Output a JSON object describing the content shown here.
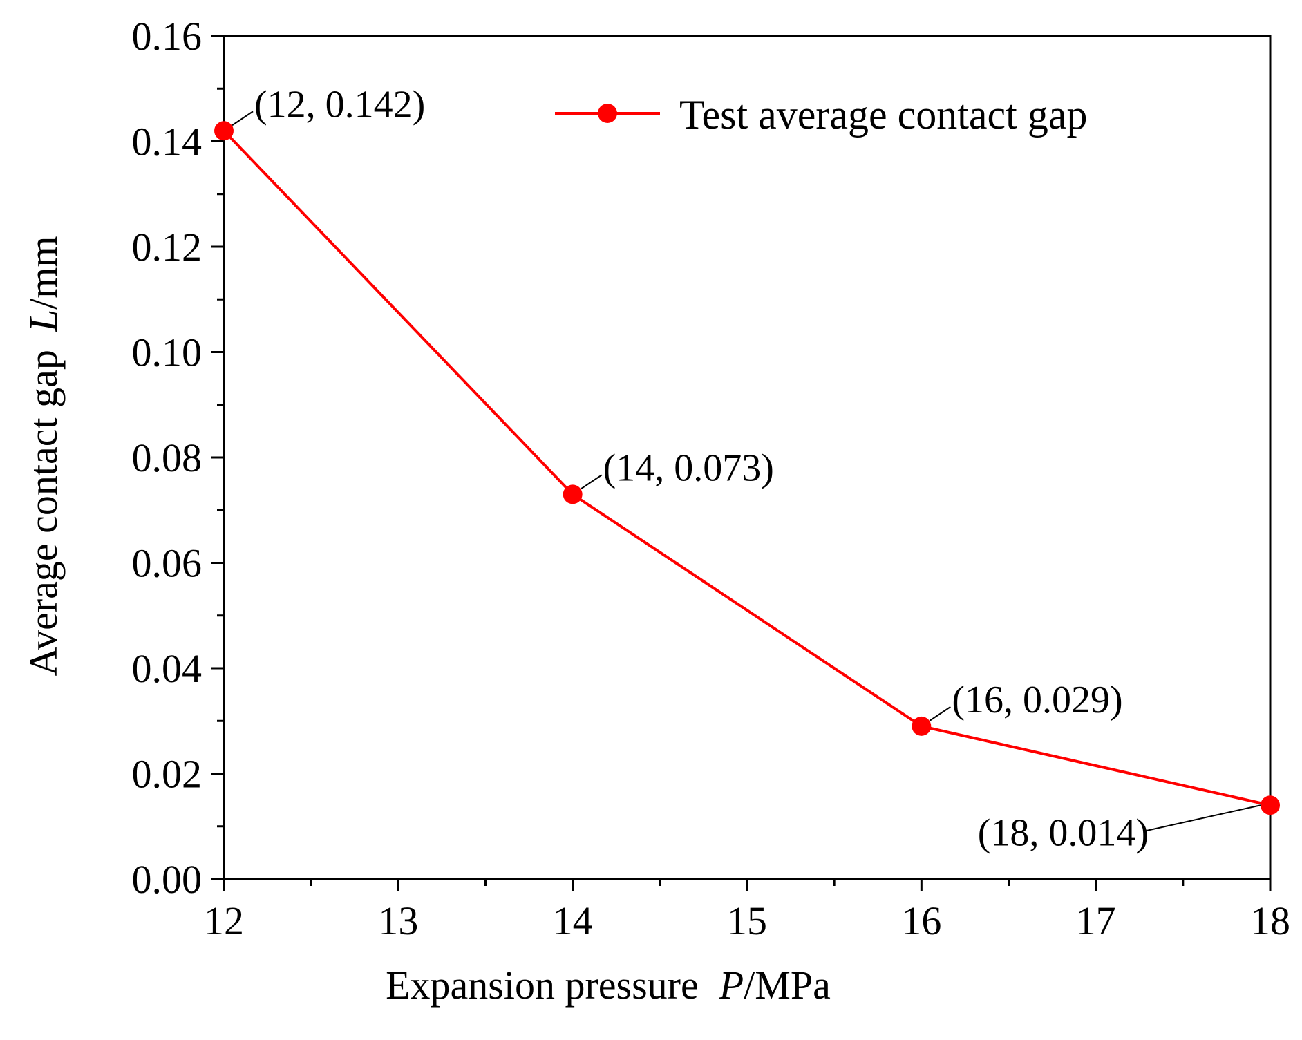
{
  "chart_data": {
    "type": "line",
    "title": "",
    "xlabel": {
      "prefix": "Expansion pressure",
      "var": "P",
      "unit": "/MPa"
    },
    "ylabel": {
      "prefix": "Average contact gap",
      "var": "L",
      "unit": "/mm"
    },
    "xlim": [
      12,
      18
    ],
    "ylim": [
      0,
      0.16
    ],
    "x_ticks": [
      "12",
      "13",
      "14",
      "15",
      "16",
      "17",
      "18"
    ],
    "y_ticks": [
      "0.00",
      "0.02",
      "0.04",
      "0.06",
      "0.08",
      "0.10",
      "0.12",
      "0.14",
      "0.16"
    ],
    "grid": false,
    "legend_position": "top-right",
    "series": [
      {
        "name": "Test average contact gap",
        "color": "#ff0000",
        "x": [
          12,
          14,
          16,
          18
        ],
        "y": [
          0.142,
          0.073,
          0.029,
          0.014
        ]
      }
    ],
    "annotations": [
      {
        "text": "(12, 0.142)",
        "x": 12,
        "y": 0.142,
        "side": "upper-right"
      },
      {
        "text": "(14, 0.073)",
        "x": 14,
        "y": 0.073,
        "side": "upper-right"
      },
      {
        "text": "(16, 0.029)",
        "x": 16,
        "y": 0.029,
        "side": "upper-right"
      },
      {
        "text": "(18, 0.014)",
        "x": 18,
        "y": 0.014,
        "side": "lower-left"
      }
    ]
  }
}
